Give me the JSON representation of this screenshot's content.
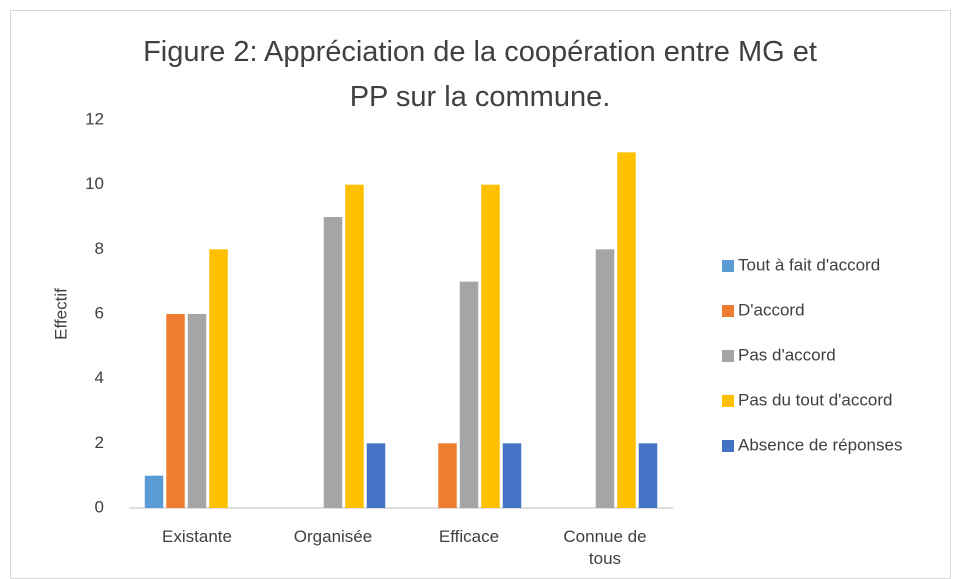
{
  "chart_data": {
    "type": "bar",
    "title": "Figure 2: Appréciation de la coopération entre MG et PP sur la commune.",
    "y_label": "Effectif",
    "categories": [
      "Existante",
      "Organisée",
      "Efficace",
      "Connue de tous"
    ],
    "series": [
      {
        "name": "Tout à fait d'accord",
        "color": "#5b9bd5",
        "values": [
          1,
          0,
          0,
          0
        ]
      },
      {
        "name": "D'accord",
        "color": "#ed7d31",
        "values": [
          6,
          0,
          2,
          0
        ]
      },
      {
        "name": "Pas d'accord",
        "color": "#a5a5a5",
        "values": [
          6,
          9,
          7,
          8
        ]
      },
      {
        "name": "Pas du tout d'accord",
        "color": "#ffc000",
        "values": [
          8,
          10,
          10,
          11
        ]
      },
      {
        "name": "Absence de réponses",
        "color": "#4472c4",
        "values": [
          0,
          2,
          2,
          2
        ]
      }
    ],
    "ylim": [
      0,
      12
    ],
    "yticks": [
      0,
      2,
      4,
      6,
      8,
      10,
      12
    ],
    "grid": false,
    "legend": "right"
  }
}
